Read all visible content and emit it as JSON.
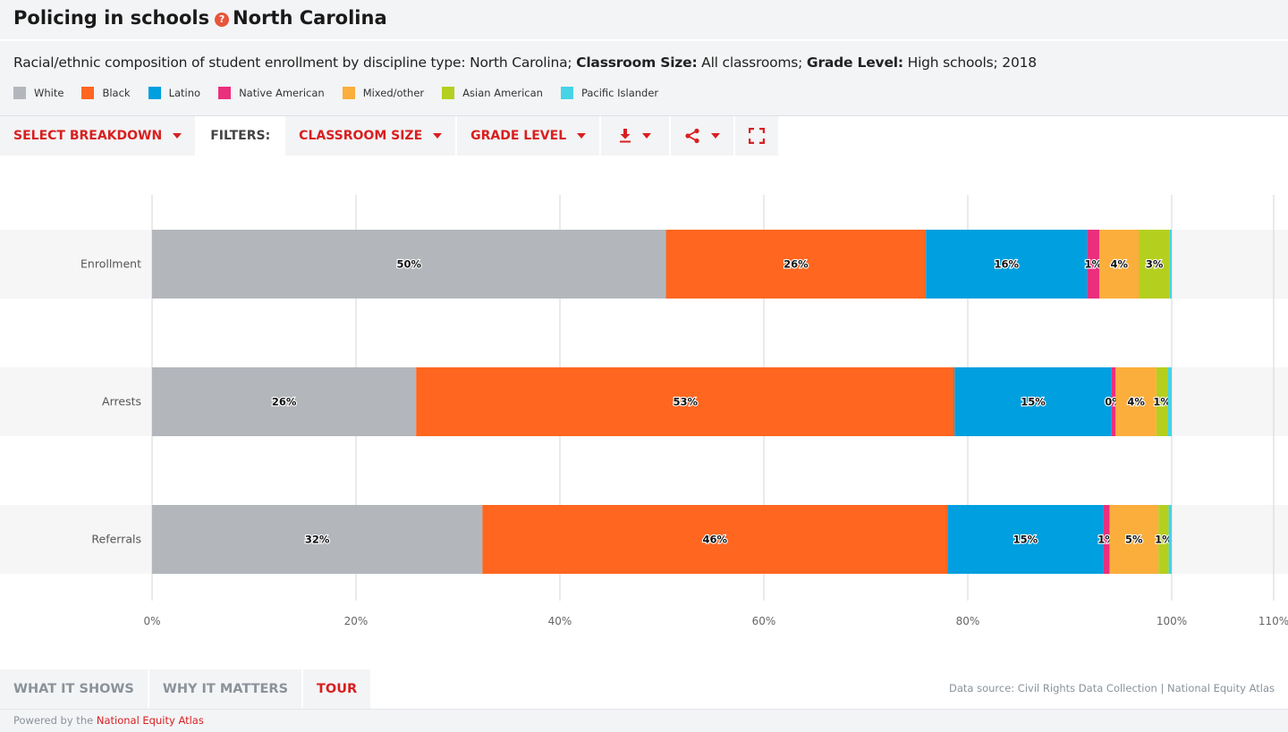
{
  "header": {
    "title_main": "Policing in schools",
    "help_icon": "?",
    "title_place": "North Carolina"
  },
  "subtitle": {
    "lead": "Racial/ethnic composition of student enrollment by discipline type: North Carolina;",
    "label1": "Classroom Size:",
    "value1": "All classrooms;",
    "label2": "Grade Level:",
    "value2": "High schools; 2018"
  },
  "toolbar": {
    "breakdown_label": "SELECT BREAKDOWN",
    "filters_label": "FILTERS:",
    "classroom_size_label": "CLASSROOM SIZE",
    "grade_level_label": "GRADE LEVEL",
    "icons": [
      "download-icon",
      "share-icon",
      "fullscreen-icon"
    ]
  },
  "colors": {
    "accent": "#d81f1f",
    "panel_bg": "#f3f4f6"
  },
  "chart_data": {
    "type": "bar",
    "orientation": "horizontal",
    "stacked": true,
    "categories": [
      "Enrollment",
      "Arrests",
      "Referrals"
    ],
    "series": [
      {
        "name": "White",
        "color": "#b3b7bc",
        "values": [
          50.4,
          25.9,
          32.4
        ],
        "labels": [
          "50%",
          "26%",
          "32%"
        ]
      },
      {
        "name": "Black",
        "color": "#ff6620",
        "values": [
          25.5,
          52.8,
          45.6
        ],
        "labels": [
          "26%",
          "53%",
          "46%"
        ]
      },
      {
        "name": "Latino",
        "color": "#009fdf",
        "values": [
          15.8,
          15.4,
          15.3
        ],
        "labels": [
          "16%",
          "15%",
          "15%"
        ]
      },
      {
        "name": "Native American",
        "color": "#eb2f7d",
        "values": [
          1.2,
          0.4,
          0.6
        ],
        "labels": [
          "1%",
          "0%",
          "1%"
        ]
      },
      {
        "name": "Mixed/other",
        "color": "#fbae3c",
        "values": [
          3.9,
          4.0,
          4.8
        ],
        "labels": [
          "4%",
          "4%",
          "5%"
        ]
      },
      {
        "name": "Asian American",
        "color": "#b5cf1e",
        "values": [
          3.0,
          1.1,
          1.0
        ],
        "labels": [
          "3%",
          "1%",
          "1%"
        ]
      },
      {
        "name": "Pacific Islander",
        "color": "#46d3e6",
        "values": [
          0.2,
          0.4,
          0.3
        ],
        "labels": [
          "",
          "",
          ""
        ]
      }
    ],
    "x_ticks": [
      "0%",
      "20%",
      "40%",
      "60%",
      "80%",
      "100%",
      "110%"
    ],
    "xlim": [
      0,
      110
    ],
    "grid": true,
    "legend": "top-left"
  },
  "tabs": [
    "WHAT IT SHOWS",
    "WHY IT MATTERS",
    "TOUR"
  ],
  "source_text": "Data source: Civil Rights Data Collection | National Equity Atlas",
  "footer": {
    "powered_by": "Powered by the",
    "atlas_link": "National Equity Atlas"
  }
}
